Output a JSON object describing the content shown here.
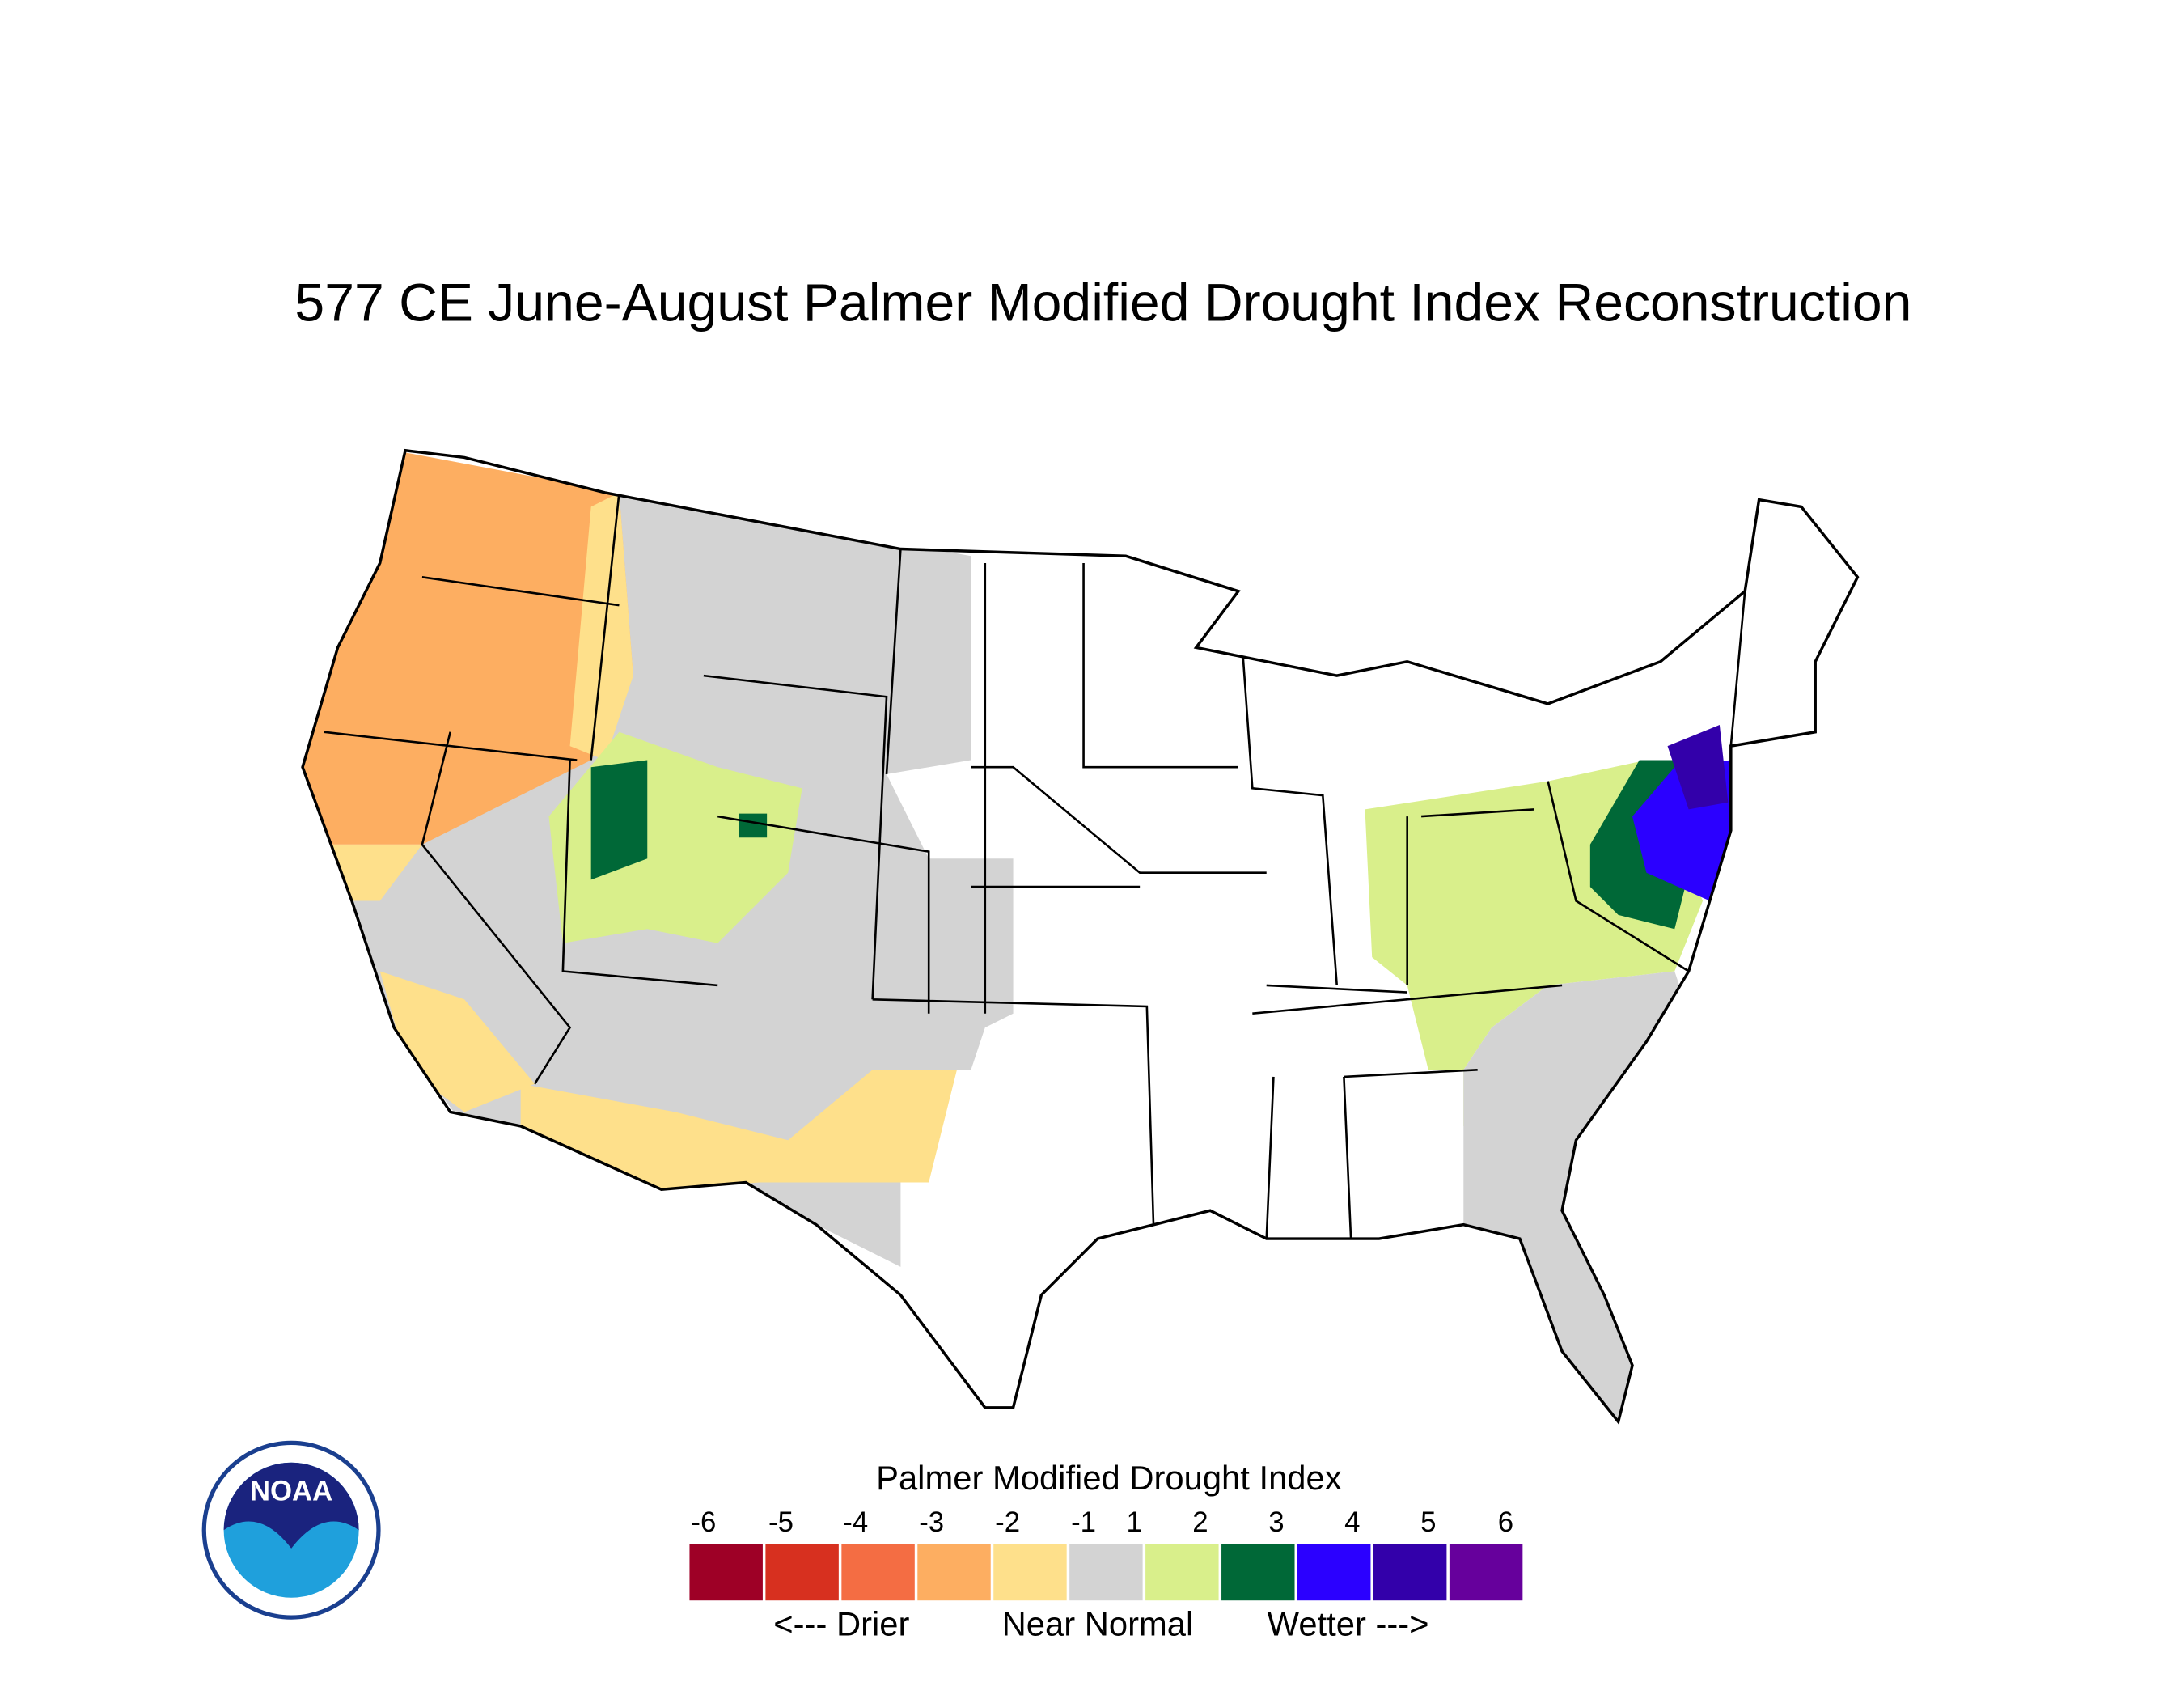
{
  "title": "577 CE  June-August  Palmer Modified Drought Index Reconstruction",
  "legend": {
    "title": "Palmer Modified Drought Index",
    "ticks": [
      -6,
      -5,
      -4,
      -3,
      -2,
      -1,
      1,
      2,
      3,
      4,
      5,
      6
    ],
    "colors": [
      "#9e0026",
      "#d7301f",
      "#f46d43",
      "#fdae61",
      "#fee08b",
      "#d3d3d3",
      "#d9ef8b",
      "#006837",
      "#2b00ff",
      "#3300aa",
      "#66009c"
    ],
    "notes": [
      "<--- Drier",
      "Near Normal",
      "Wetter --->"
    ]
  },
  "logo": {
    "text": "NOAA"
  }
}
